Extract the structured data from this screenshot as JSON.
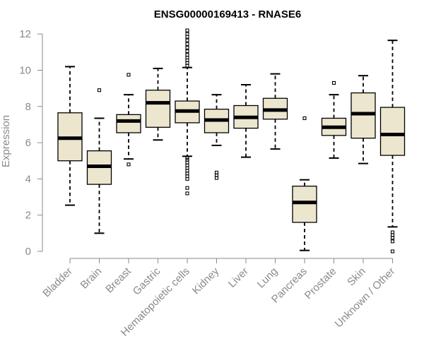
{
  "chart_data": {
    "type": "boxplot",
    "title": "ENSG00000169413 - RNASE6",
    "xlabel": "",
    "ylabel": "Expression",
    "ylim": [
      0,
      12
    ],
    "yticks": [
      0,
      2,
      4,
      6,
      8,
      10,
      12
    ],
    "categories": [
      "Bladder",
      "Brain",
      "Breast",
      "Gastric",
      "Hematopoietic cells",
      "Kidney",
      "Liver",
      "Lung",
      "Pancreas",
      "Prostate",
      "Skin",
      "Unknown / Other"
    ],
    "boxes": [
      {
        "whisker_low": 2.55,
        "q1": 5.0,
        "median": 6.25,
        "q3": 7.65,
        "whisker_high": 10.2,
        "outliers": []
      },
      {
        "whisker_low": 1.0,
        "q1": 3.7,
        "median": 4.7,
        "q3": 5.55,
        "whisker_high": 7.35,
        "outliers": [
          8.9
        ]
      },
      {
        "whisker_low": 5.1,
        "q1": 6.55,
        "median": 7.2,
        "q3": 7.55,
        "whisker_high": 8.65,
        "outliers": [
          9.75,
          4.8
        ]
      },
      {
        "whisker_low": 6.15,
        "q1": 6.85,
        "median": 8.2,
        "q3": 8.9,
        "whisker_high": 10.1,
        "outliers": []
      },
      {
        "whisker_low": 5.25,
        "q1": 7.1,
        "median": 7.75,
        "q3": 8.3,
        "whisker_high": 10.15,
        "outliers": [
          12.2,
          12.0,
          11.85,
          11.65,
          11.45,
          11.25,
          11.05,
          10.85,
          10.7,
          10.55,
          10.4,
          10.25,
          5.15,
          5.05,
          4.9,
          4.75,
          4.6,
          4.45,
          4.3,
          4.15,
          4.0,
          3.5,
          3.2
        ]
      },
      {
        "whisker_low": 5.85,
        "q1": 6.55,
        "median": 7.25,
        "q3": 7.85,
        "whisker_high": 8.65,
        "outliers": [
          4.35,
          4.2,
          4.05
        ]
      },
      {
        "whisker_low": 5.2,
        "q1": 6.8,
        "median": 7.4,
        "q3": 8.05,
        "whisker_high": 9.2,
        "outliers": []
      },
      {
        "whisker_low": 5.65,
        "q1": 7.3,
        "median": 7.8,
        "q3": 8.45,
        "whisker_high": 9.8,
        "outliers": []
      },
      {
        "whisker_low": 0.05,
        "q1": 1.6,
        "median": 2.7,
        "q3": 3.6,
        "whisker_high": 3.95,
        "outliers": [
          7.35
        ]
      },
      {
        "whisker_low": 5.15,
        "q1": 6.4,
        "median": 6.85,
        "q3": 7.35,
        "whisker_high": 8.65,
        "outliers": [
          9.3
        ]
      },
      {
        "whisker_low": 4.85,
        "q1": 6.25,
        "median": 7.6,
        "q3": 8.75,
        "whisker_high": 9.7,
        "outliers": []
      },
      {
        "whisker_low": 1.35,
        "q1": 5.3,
        "median": 6.45,
        "q3": 7.95,
        "whisker_high": 11.65,
        "outliers": [
          1.05,
          0.9,
          0.75,
          0.55,
          0.0
        ]
      }
    ],
    "colors": {
      "box_fill": "#ede6cf",
      "stroke": "#000000",
      "axis": "#8a8a8a"
    }
  }
}
